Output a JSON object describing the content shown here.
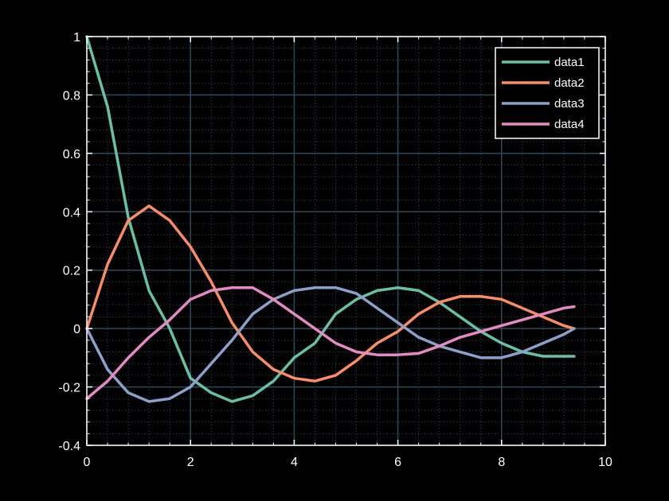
{
  "chart_data": {
    "type": "line",
    "title": "",
    "xlabel": "",
    "ylabel": "",
    "xlim": [
      0,
      10
    ],
    "ylim": [
      -0.4,
      1
    ],
    "x_ticks": [
      0,
      2,
      4,
      6,
      8,
      10
    ],
    "x_tick_labels": [
      "0",
      "2",
      "4",
      "6",
      "8",
      "10"
    ],
    "y_ticks": [
      -0.4,
      -0.2,
      0,
      0.2,
      0.4,
      0.6,
      0.8,
      1
    ],
    "y_tick_labels": [
      "-0.4",
      "-0.2",
      "0",
      "0.2",
      "0.4",
      "0.6",
      "0.8",
      "1"
    ],
    "grid": true,
    "minor_grid": true,
    "legend_position": "top-right",
    "background": "#000000",
    "axis_color": "#ffffff",
    "grid_color": "#2e4a57",
    "x": [
      0.0,
      0.4,
      0.8,
      1.2,
      1.6,
      2.0,
      2.4,
      2.8,
      3.2,
      3.6,
      4.0,
      4.4,
      4.8,
      5.2,
      5.6,
      6.0,
      6.4,
      6.8,
      7.2,
      7.6,
      8.0,
      8.4,
      8.8,
      9.2,
      9.4
    ],
    "series": [
      {
        "name": "data1",
        "color": "#66c2a5",
        "values": [
          1.0,
          0.76,
          0.38,
          0.13,
          0.0,
          -0.17,
          -0.22,
          -0.25,
          -0.23,
          -0.18,
          -0.1,
          -0.05,
          0.05,
          0.1,
          0.13,
          0.14,
          0.13,
          0.09,
          0.04,
          -0.01,
          -0.05,
          -0.08,
          -0.095,
          -0.095,
          -0.095
        ]
      },
      {
        "name": "data2",
        "color": "#fc8d62",
        "values": [
          0.0,
          0.22,
          0.37,
          0.42,
          0.37,
          0.28,
          0.16,
          0.02,
          -0.08,
          -0.14,
          -0.17,
          -0.18,
          -0.16,
          -0.11,
          -0.05,
          -0.01,
          0.05,
          0.09,
          0.11,
          0.11,
          0.1,
          0.07,
          0.04,
          0.01,
          0.0
        ]
      },
      {
        "name": "data3",
        "color": "#8da0cb",
        "values": [
          0.0,
          -0.14,
          -0.22,
          -0.25,
          -0.24,
          -0.2,
          -0.12,
          -0.04,
          0.05,
          0.1,
          0.13,
          0.14,
          0.14,
          0.12,
          0.07,
          0.02,
          -0.03,
          -0.06,
          -0.08,
          -0.1,
          -0.1,
          -0.08,
          -0.05,
          -0.02,
          0.0
        ]
      },
      {
        "name": "data4",
        "color": "#e78ac3",
        "values": [
          -0.24,
          -0.18,
          -0.1,
          -0.03,
          0.03,
          0.1,
          0.13,
          0.14,
          0.14,
          0.1,
          0.05,
          0.0,
          -0.05,
          -0.08,
          -0.09,
          -0.09,
          -0.085,
          -0.06,
          -0.03,
          -0.01,
          0.01,
          0.03,
          0.05,
          0.07,
          0.075
        ]
      }
    ]
  }
}
